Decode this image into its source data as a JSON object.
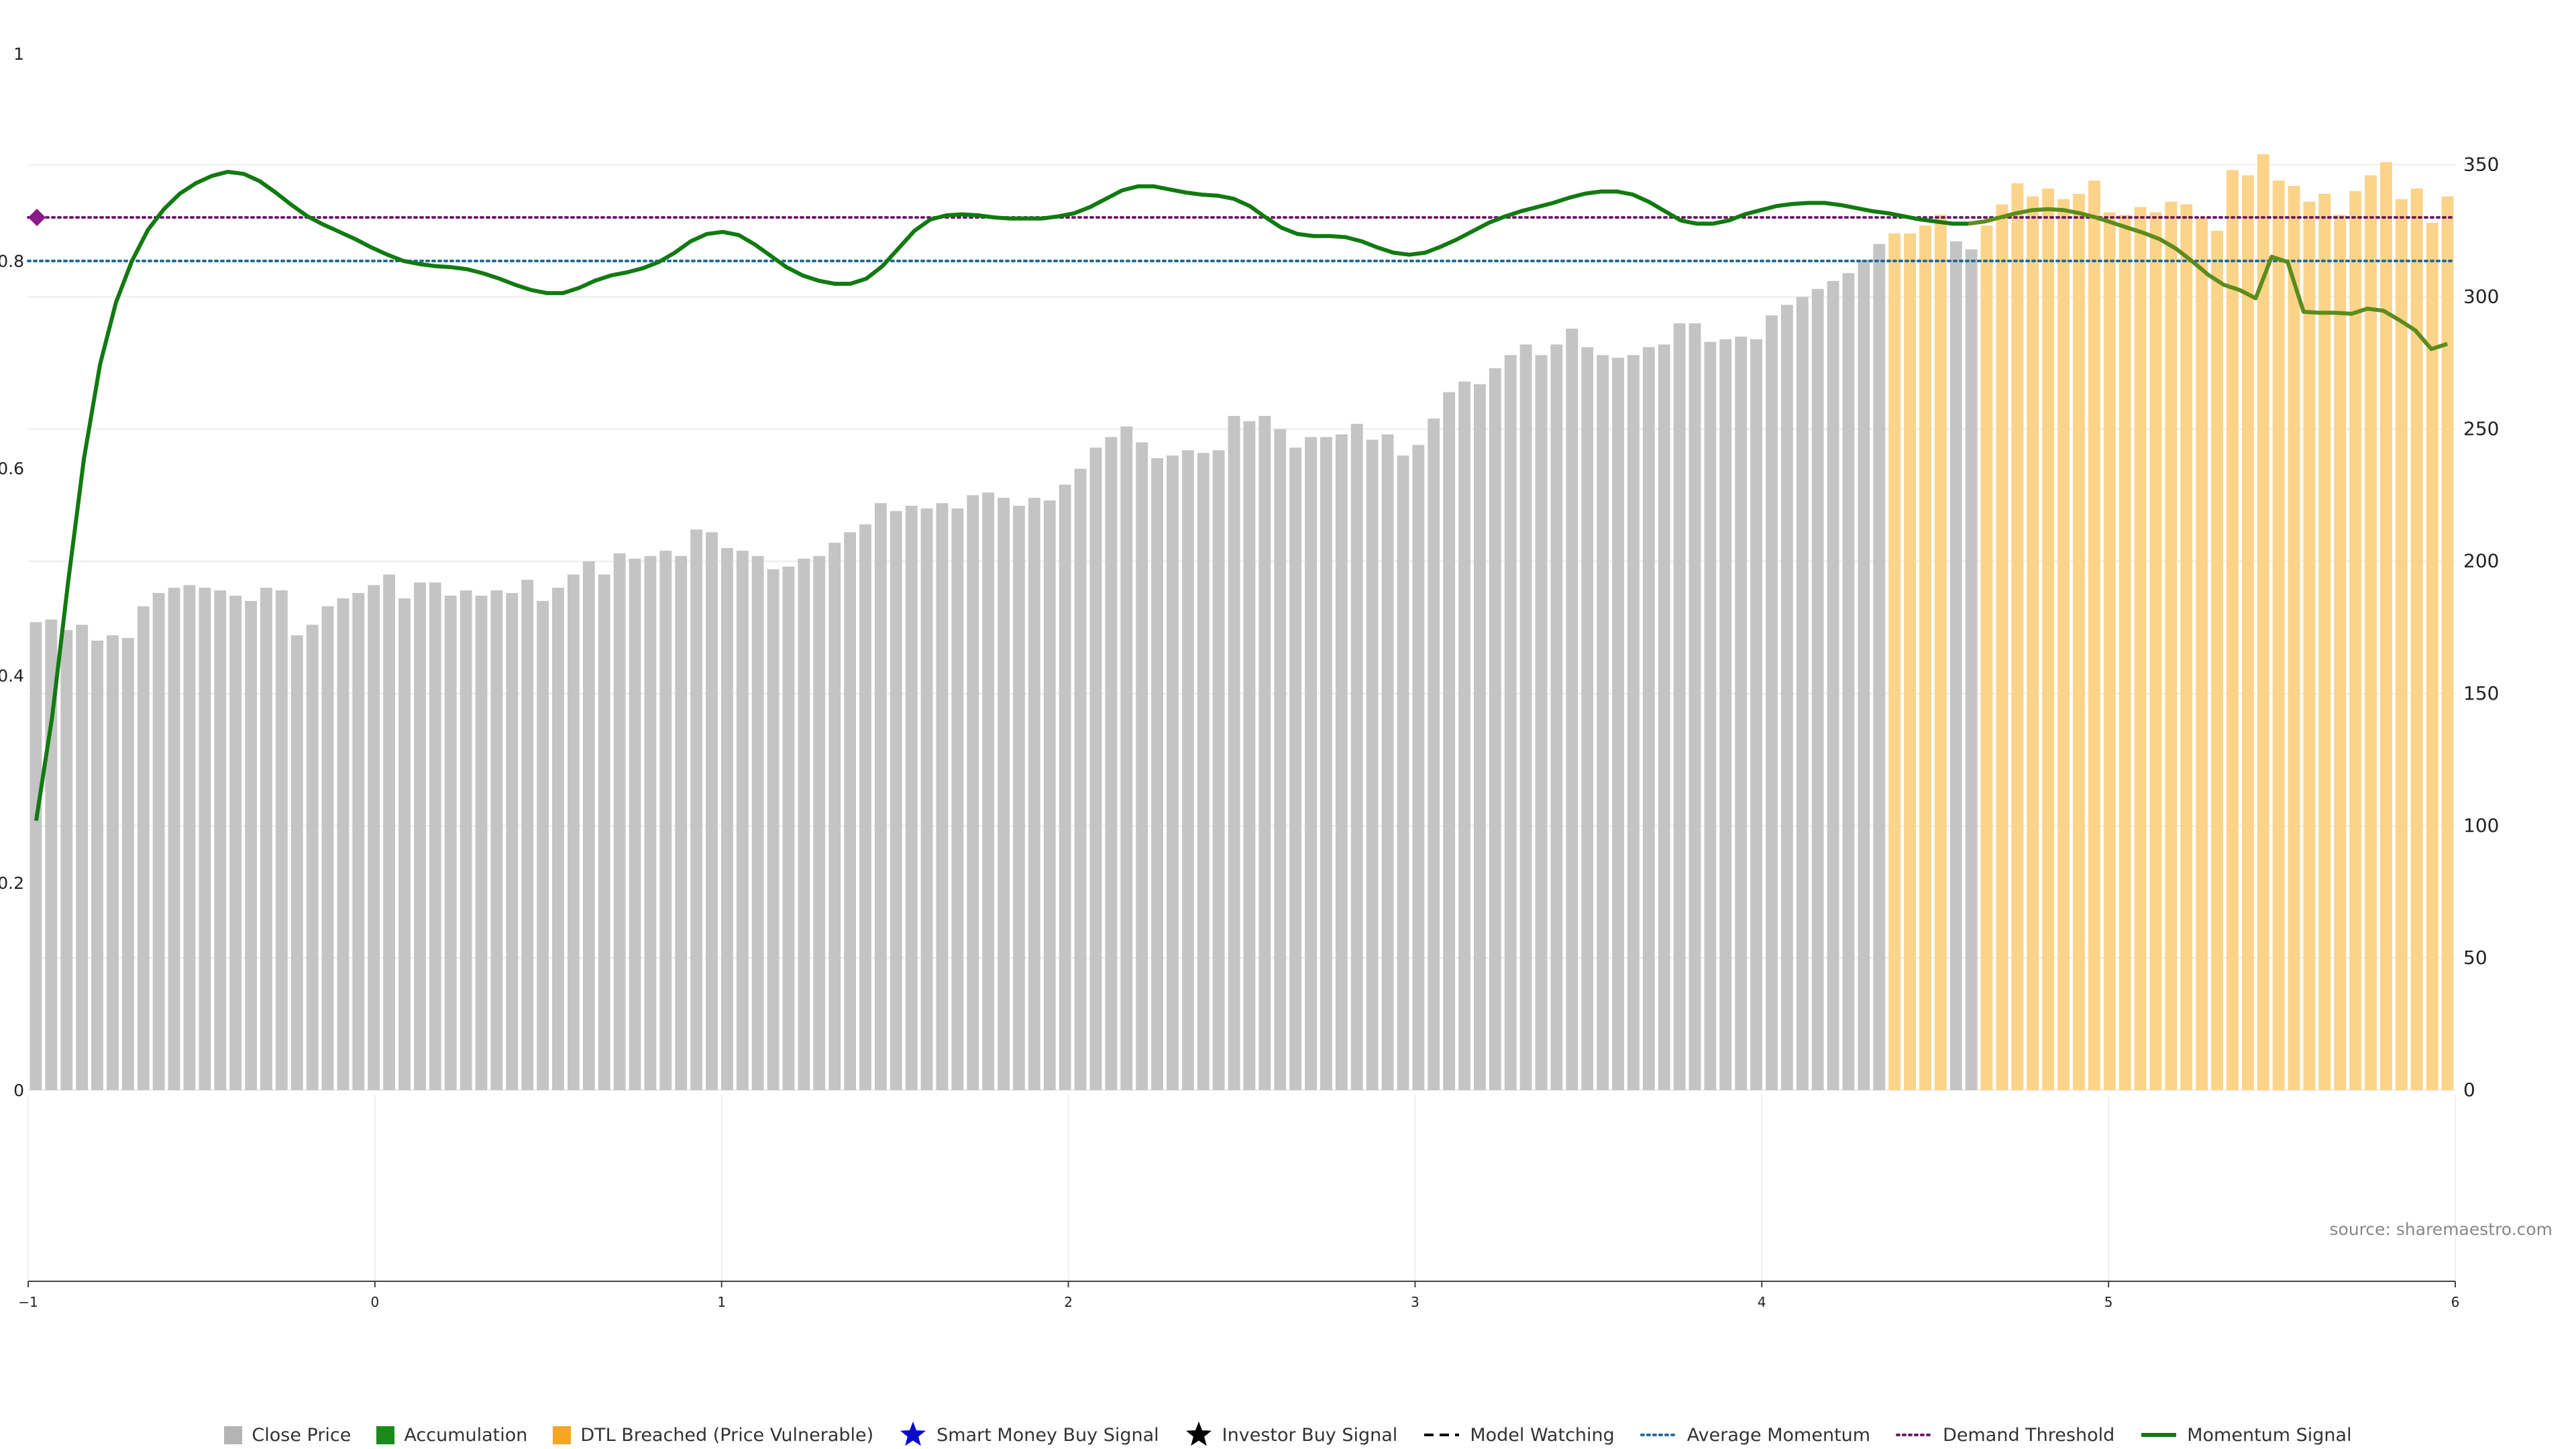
{
  "chart_data": {
    "type": "bar",
    "x_ticks": [
      "−1",
      "0",
      "1",
      "2",
      "3",
      "4",
      "5",
      "6"
    ],
    "left_y_ticks": [
      "0",
      "0.2",
      "0.4",
      "0.6",
      "0.8",
      "1"
    ],
    "right_y_ticks": [
      "0",
      "50",
      "100",
      "150",
      "200",
      "250",
      "300",
      "350"
    ],
    "ylim_left": [
      0,
      1
    ],
    "ylim_right": [
      0,
      392
    ],
    "source": "source: sharemaestro.com",
    "colors": {
      "close_price": "#c4c4c4",
      "accumulation": "#1a8a1a",
      "dtl_breached": "#fbd389",
      "smart_money": "#0b0bcc",
      "investor_buy": "#000000",
      "model_watching": "#000000",
      "average_momentum": "#1f6b99",
      "demand_threshold": "#6b1a6b",
      "momentum": "#117a11",
      "momentum_vulnerable": "#5b8c1c",
      "marker": "#8a1a8a"
    },
    "legend": [
      {
        "label": "Close Price",
        "kind": "square",
        "color": "#b4b4b4"
      },
      {
        "label": "Accumulation",
        "kind": "square",
        "color": "#1a8a1a"
      },
      {
        "label": "DTL Breached (Price Vulnerable)",
        "kind": "square",
        "color": "#f5a623"
      },
      {
        "label": "Smart Money Buy Signal",
        "kind": "star",
        "color": "#0b0bcc"
      },
      {
        "label": "Investor Buy Signal",
        "kind": "star",
        "color": "#000000"
      },
      {
        "label": "Model Watching",
        "kind": "dashed",
        "color": "#000000"
      },
      {
        "label": "Average Momentum",
        "kind": "dotted",
        "color": "#1f6b99"
      },
      {
        "label": "Demand Threshold",
        "kind": "dotted",
        "color": "#6b1a6b"
      },
      {
        "label": "Momentum Signal",
        "kind": "solid",
        "color": "#117a11"
      }
    ],
    "average_momentum": 0.8,
    "demand_threshold": 0.842,
    "close_price": [
      177,
      178,
      174,
      176,
      170,
      172,
      171,
      183,
      188,
      190,
      191,
      190,
      189,
      187,
      185,
      190,
      189,
      172,
      176,
      183,
      186,
      188,
      191,
      195,
      186,
      192,
      192,
      187,
      189,
      187,
      189,
      188,
      193,
      185,
      190,
      195,
      200,
      195,
      203,
      201,
      202,
      204,
      202,
      212,
      211,
      205,
      204,
      202,
      197,
      198,
      201,
      202,
      207,
      211,
      214,
      222,
      219,
      221,
      220,
      222,
      220,
      225,
      226,
      224,
      221,
      224,
      223,
      229,
      235,
      243,
      247,
      251,
      245,
      239,
      240,
      242,
      241,
      242,
      255,
      253,
      255,
      250,
      243,
      247,
      247,
      248,
      252,
      246,
      248,
      240,
      244,
      254,
      264,
      268,
      267,
      273,
      278,
      282,
      278,
      282,
      288,
      281,
      278,
      277,
      278,
      281,
      282,
      290,
      290,
      283,
      284,
      285,
      284,
      293,
      297,
      300,
      303,
      306,
      309,
      314,
      320,
      324,
      324,
      327,
      331,
      321,
      318,
      327,
      335,
      343,
      338,
      341,
      337,
      339,
      344,
      332,
      331,
      334,
      332,
      336,
      335,
      330,
      325,
      348,
      346,
      354,
      344,
      342,
      336,
      339,
      331,
      340,
      346,
      351,
      337,
      341,
      328,
      338
    ],
    "dtl_breached": [
      0,
      0,
      0,
      0,
      0,
      0,
      0,
      0,
      0,
      0,
      0,
      0,
      0,
      0,
      0,
      0,
      0,
      0,
      0,
      0,
      0,
      0,
      0,
      0,
      0,
      0,
      0,
      0,
      0,
      0,
      0,
      0,
      0,
      0,
      0,
      0,
      0,
      0,
      0,
      0,
      0,
      0,
      0,
      0,
      0,
      0,
      0,
      0,
      0,
      0,
      0,
      0,
      0,
      0,
      0,
      0,
      0,
      0,
      0,
      0,
      0,
      0,
      0,
      0,
      0,
      0,
      0,
      0,
      0,
      0,
      0,
      0,
      0,
      0,
      0,
      0,
      0,
      0,
      0,
      0,
      0,
      0,
      0,
      0,
      0,
      0,
      0,
      0,
      0,
      0,
      0,
      0,
      0,
      0,
      0,
      0,
      0,
      0,
      0,
      0,
      0,
      0,
      0,
      0,
      0,
      0,
      0,
      0,
      0,
      0,
      0,
      0,
      0,
      0,
      0,
      0,
      0,
      0,
      0,
      0,
      0,
      1,
      1,
      1,
      1,
      0,
      0,
      1,
      1,
      1,
      1,
      1,
      1,
      1,
      1,
      1,
      1,
      1,
      1,
      1,
      1,
      1,
      1,
      1,
      1,
      1,
      1,
      1,
      1,
      1,
      1,
      1,
      1,
      1,
      1,
      1,
      1,
      1
    ],
    "momentum": [
      0.26,
      0.36,
      0.49,
      0.61,
      0.7,
      0.76,
      0.8,
      0.83,
      0.85,
      0.865,
      0.875,
      0.882,
      0.886,
      0.884,
      0.877,
      0.866,
      0.854,
      0.843,
      0.835,
      0.828,
      0.821,
      0.813,
      0.806,
      0.8,
      0.797,
      0.795,
      0.794,
      0.792,
      0.788,
      0.783,
      0.777,
      0.772,
      0.769,
      0.769,
      0.774,
      0.781,
      0.786,
      0.789,
      0.793,
      0.799,
      0.808,
      0.819,
      0.826,
      0.828,
      0.825,
      0.816,
      0.805,
      0.794,
      0.786,
      0.781,
      0.778,
      0.778,
      0.783,
      0.795,
      0.812,
      0.829,
      0.84,
      0.844,
      0.845,
      0.844,
      0.842,
      0.841,
      0.841,
      0.841,
      0.843,
      0.846,
      0.852,
      0.86,
      0.868,
      0.872,
      0.872,
      0.869,
      0.866,
      0.864,
      0.863,
      0.86,
      0.853,
      0.842,
      0.832,
      0.826,
      0.824,
      0.824,
      0.823,
      0.819,
      0.813,
      0.808,
      0.806,
      0.808,
      0.814,
      0.821,
      0.829,
      0.837,
      0.843,
      0.848,
      0.852,
      0.856,
      0.861,
      0.865,
      0.867,
      0.867,
      0.864,
      0.857,
      0.848,
      0.839,
      0.836,
      0.836,
      0.839,
      0.845,
      0.849,
      0.853,
      0.855,
      0.856,
      0.856,
      0.854,
      0.851,
      0.848,
      0.846,
      0.843,
      0.84,
      0.838,
      0.836,
      0.836,
      0.838,
      0.842,
      0.846,
      0.849,
      0.85,
      0.849,
      0.846,
      0.842,
      0.837,
      0.832,
      0.827,
      0.821,
      0.812,
      0.8,
      0.787,
      0.777,
      0.772,
      0.764,
      0.804,
      0.799,
      0.751,
      0.75,
      0.75,
      0.749,
      0.754,
      0.752,
      0.743,
      0.733,
      0.715,
      0.72
    ],
    "momentum_vulnerable_from": 121,
    "series": [
      {
        "name": "Close Price",
        "axis": "right"
      },
      {
        "name": "DTL Breached (Price Vulnerable)",
        "axis": "right"
      },
      {
        "name": "Momentum Signal",
        "axis": "left"
      },
      {
        "name": "Average Momentum",
        "axis": "left"
      },
      {
        "name": "Demand Threshold",
        "axis": "left"
      }
    ]
  }
}
